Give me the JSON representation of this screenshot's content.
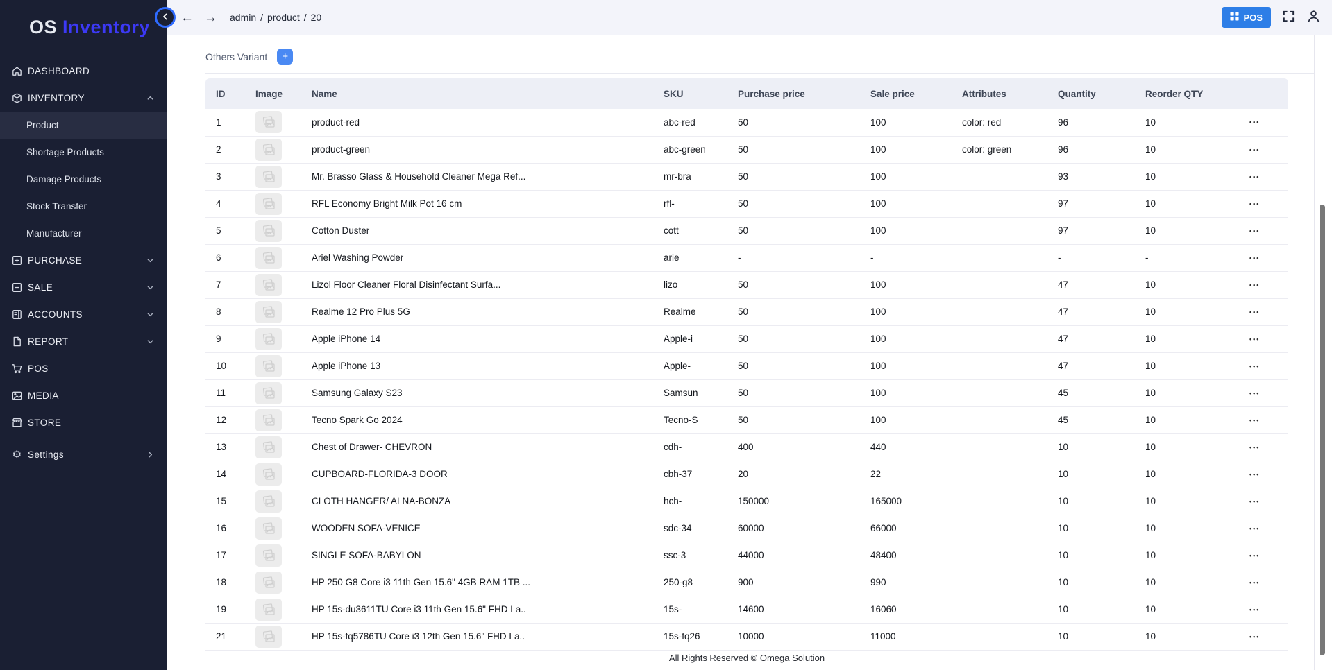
{
  "brand": {
    "name_primary": "OS",
    "name_accent": "Inventory"
  },
  "topbar": {
    "breadcrumb": {
      "parts": [
        "admin",
        "product",
        "20"
      ],
      "separator": "/"
    },
    "pos_button": "POS"
  },
  "sidebar": {
    "dashboard": "DASHBOARD",
    "inventory": "INVENTORY",
    "inventory_children": {
      "product": "Product",
      "shortage": "Shortage Products",
      "damage": "Damage Products",
      "stock_transfer": "Stock Transfer",
      "manufacturer": "Manufacturer"
    },
    "purchase": "PURCHASE",
    "sale": "SALE",
    "accounts": "ACCOUNTS",
    "report": "REPORT",
    "pos": "POS",
    "media": "MEDIA",
    "store": "STORE",
    "settings": "Settings"
  },
  "page": {
    "section_title": "Others Variant",
    "add_button": "+",
    "footer": "All Rights Reserved © Omega Solution"
  },
  "table": {
    "columns": [
      "ID",
      "Image",
      "Name",
      "SKU",
      "Purchase price",
      "Sale price",
      "Attributes",
      "Quantity",
      "Reorder QTY",
      ""
    ],
    "actions_icon": "•••",
    "rows": [
      {
        "id": 1,
        "name": "product-red",
        "sku": "abc-red",
        "purchase": "50",
        "sale": "100",
        "attributes": "color: red",
        "quantity": "96",
        "reorder": "10"
      },
      {
        "id": 2,
        "name": "product-green",
        "sku": "abc-green",
        "purchase": "50",
        "sale": "100",
        "attributes": "color: green",
        "quantity": "96",
        "reorder": "10"
      },
      {
        "id": 3,
        "name": "Mr. Brasso Glass & Household Cleaner Mega Ref...",
        "sku": "mr-bra",
        "purchase": "50",
        "sale": "100",
        "attributes": "",
        "quantity": "93",
        "reorder": "10"
      },
      {
        "id": 4,
        "name": "RFL Economy Bright Milk Pot 16 cm",
        "sku": "rfl-",
        "purchase": "50",
        "sale": "100",
        "attributes": "",
        "quantity": "97",
        "reorder": "10"
      },
      {
        "id": 5,
        "name": "Cotton Duster",
        "sku": "cott",
        "purchase": "50",
        "sale": "100",
        "attributes": "",
        "quantity": "97",
        "reorder": "10"
      },
      {
        "id": 6,
        "name": "Ariel Washing Powder",
        "sku": "arie",
        "purchase": "-",
        "sale": "-",
        "attributes": "",
        "quantity": "-",
        "reorder": "-"
      },
      {
        "id": 7,
        "name": "Lizol Floor Cleaner Floral Disinfectant Surfa...",
        "sku": "lizo",
        "purchase": "50",
        "sale": "100",
        "attributes": "",
        "quantity": "47",
        "reorder": "10"
      },
      {
        "id": 8,
        "name": "Realme 12 Pro Plus 5G",
        "sku": "Realme",
        "purchase": "50",
        "sale": "100",
        "attributes": "",
        "quantity": "47",
        "reorder": "10"
      },
      {
        "id": 9,
        "name": "Apple iPhone 14",
        "sku": "Apple-i",
        "purchase": "50",
        "sale": "100",
        "attributes": "",
        "quantity": "47",
        "reorder": "10"
      },
      {
        "id": 10,
        "name": "Apple iPhone 13",
        "sku": "Apple-",
        "purchase": "50",
        "sale": "100",
        "attributes": "",
        "quantity": "47",
        "reorder": "10"
      },
      {
        "id": 11,
        "name": "Samsung Galaxy S23",
        "sku": "Samsun",
        "purchase": "50",
        "sale": "100",
        "attributes": "",
        "quantity": "45",
        "reorder": "10"
      },
      {
        "id": 12,
        "name": "Tecno Spark Go 2024",
        "sku": "Tecno-S",
        "purchase": "50",
        "sale": "100",
        "attributes": "",
        "quantity": "45",
        "reorder": "10"
      },
      {
        "id": 13,
        "name": "Chest of Drawer- CHEVRON",
        "sku": "cdh-",
        "purchase": "400",
        "sale": "440",
        "attributes": "",
        "quantity": "10",
        "reorder": "10"
      },
      {
        "id": 14,
        "name": "CUPBOARD-FLORIDA-3 DOOR",
        "sku": "cbh-37",
        "purchase": "20",
        "sale": "22",
        "attributes": "",
        "quantity": "10",
        "reorder": "10"
      },
      {
        "id": 15,
        "name": "CLOTH HANGER/ ALNA-BONZA",
        "sku": "hch-",
        "purchase": "150000",
        "sale": "165000",
        "attributes": "",
        "quantity": "10",
        "reorder": "10"
      },
      {
        "id": 16,
        "name": "WOODEN SOFA-VENICE",
        "sku": "sdc-34",
        "purchase": "60000",
        "sale": "66000",
        "attributes": "",
        "quantity": "10",
        "reorder": "10"
      },
      {
        "id": 17,
        "name": "SINGLE SOFA-BABYLON",
        "sku": "ssc-3",
        "purchase": "44000",
        "sale": "48400",
        "attributes": "",
        "quantity": "10",
        "reorder": "10"
      },
      {
        "id": 18,
        "name": "HP 250 G8 Core i3 11th Gen 15.6\" 4GB RAM 1TB ...",
        "sku": "250-g8",
        "purchase": "900",
        "sale": "990",
        "attributes": "",
        "quantity": "10",
        "reorder": "10"
      },
      {
        "id": 19,
        "name": "HP 15s-du3611TU Core i3 11th Gen 15.6\" FHD La..",
        "sku": "15s-",
        "purchase": "14600",
        "sale": "16060",
        "attributes": "",
        "quantity": "10",
        "reorder": "10"
      },
      {
        "id": 21,
        "name": "HP 15s-fq5786TU Core i3 12th Gen 15.6\" FHD La..",
        "sku": "15s-fq26",
        "purchase": "10000",
        "sale": "11000",
        "attributes": "",
        "quantity": "10",
        "reorder": "10"
      }
    ]
  },
  "colors": {
    "accent": "#3c39f5",
    "pos_blue": "#2d7ee7",
    "sidebar_bg": "#1a1f33",
    "active_item_bg": "#282d42",
    "table_header_bg": "#edeff6"
  }
}
